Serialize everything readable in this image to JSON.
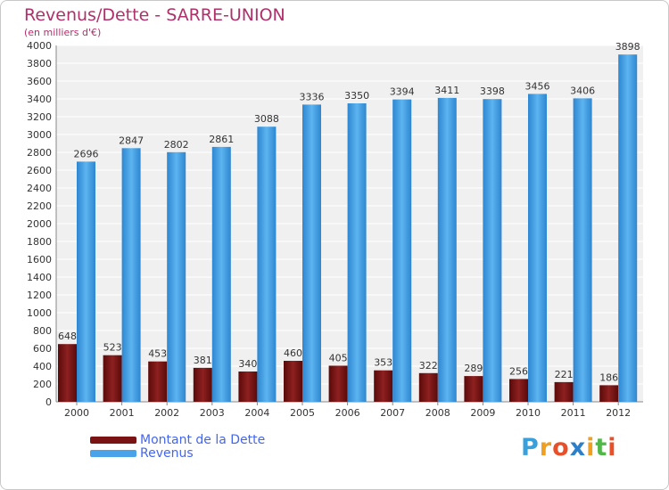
{
  "chart_data": {
    "type": "bar",
    "title": "Revenus/Dette - SARRE-UNION",
    "subtitle": "(en milliers d'€)",
    "categories": [
      "2000",
      "2001",
      "2002",
      "2003",
      "2004",
      "2005",
      "2006",
      "2007",
      "2008",
      "2009",
      "2010",
      "2011",
      "2012"
    ],
    "series": [
      {
        "name": "Montant de la Dette",
        "color": "#7a1414",
        "values": [
          648,
          523,
          453,
          381,
          340,
          460,
          405,
          353,
          322,
          289,
          256,
          221,
          186
        ]
      },
      {
        "name": "Revenus",
        "color": "#4aa3e8",
        "values": [
          2696,
          2847,
          2802,
          2861,
          3088,
          3336,
          3350,
          3394,
          3411,
          3398,
          3456,
          3406,
          3898
        ]
      }
    ],
    "ylim": [
      0,
      4000
    ],
    "ytick_step": 200,
    "grid": true,
    "legend_position": "bottom-left"
  },
  "logo": {
    "text": "Proxiti",
    "colors": [
      "#3aa0dc",
      "#f0a020",
      "#e8502a",
      "#2c7fc8",
      "#f0a020",
      "#50b848",
      "#e8502a"
    ]
  }
}
